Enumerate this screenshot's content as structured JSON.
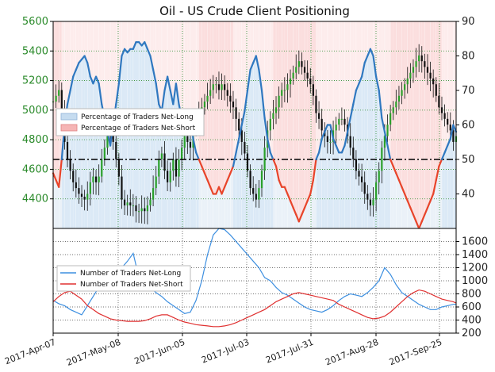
{
  "chart_data": [
    {
      "type": "line",
      "title": "Oil - US Crude Client Positioning",
      "y_left": {
        "ticks": [
          4400,
          4600,
          4800,
          5000,
          5200,
          5400,
          5600
        ],
        "range": [
          4200,
          5600
        ],
        "color": "#2a8a2a"
      },
      "y_right": {
        "ticks": [
          40,
          50,
          60,
          70,
          80,
          90
        ],
        "range": [
          30,
          90
        ]
      },
      "x_ticks": [
        "2017-Apr-07",
        "2017-May-08",
        "2017-Jun-05",
        "2017-Jul-03",
        "2017-Jul-31",
        "2017-Aug-28",
        "2017-Sep-25"
      ],
      "reference_line": {
        "value": 50,
        "axis": "right",
        "style": "dash-dot"
      },
      "legend": {
        "placement": "upper-left",
        "entries": [
          {
            "label": "Percentage of Traders Net-Long",
            "color": "#c6dcf0"
          },
          {
            "label": "Percentage of Traders Net-Short",
            "color": "#f5b5b5"
          }
        ]
      },
      "net_long_pct": [
        [
          0,
          46
        ],
        [
          1,
          44
        ],
        [
          2,
          42
        ],
        [
          3,
          50
        ],
        [
          4,
          60
        ],
        [
          5,
          66
        ],
        [
          6,
          70
        ],
        [
          7,
          74
        ],
        [
          8,
          76
        ],
        [
          9,
          78
        ],
        [
          10,
          79
        ],
        [
          11,
          80
        ],
        [
          12,
          78
        ],
        [
          13,
          74
        ],
        [
          14,
          72
        ],
        [
          15,
          74
        ],
        [
          16,
          72
        ],
        [
          17,
          66
        ],
        [
          18,
          62
        ],
        [
          19,
          58
        ],
        [
          20,
          54
        ],
        [
          21,
          60
        ],
        [
          22,
          66
        ],
        [
          23,
          72
        ],
        [
          24,
          80
        ],
        [
          25,
          82
        ],
        [
          26,
          81
        ],
        [
          27,
          82
        ],
        [
          28,
          82
        ],
        [
          29,
          84
        ],
        [
          30,
          84
        ],
        [
          31,
          83
        ],
        [
          32,
          84
        ],
        [
          33,
          82
        ],
        [
          34,
          80
        ],
        [
          35,
          76
        ],
        [
          36,
          72
        ],
        [
          37,
          66
        ],
        [
          38,
          64
        ],
        [
          39,
          70
        ],
        [
          40,
          74
        ],
        [
          41,
          70
        ],
        [
          42,
          66
        ],
        [
          43,
          72
        ],
        [
          44,
          66
        ],
        [
          45,
          62
        ],
        [
          46,
          58
        ],
        [
          47,
          60
        ],
        [
          48,
          62
        ],
        [
          49,
          56
        ],
        [
          50,
          52
        ],
        [
          51,
          50
        ],
        [
          52,
          48
        ],
        [
          53,
          46
        ],
        [
          54,
          44
        ],
        [
          55,
          42
        ],
        [
          56,
          40
        ],
        [
          57,
          40
        ],
        [
          58,
          42
        ],
        [
          59,
          40
        ],
        [
          60,
          42
        ],
        [
          61,
          44
        ],
        [
          62,
          46
        ],
        [
          63,
          48
        ],
        [
          64,
          52
        ],
        [
          65,
          56
        ],
        [
          66,
          60
        ],
        [
          67,
          64
        ],
        [
          68,
          70
        ],
        [
          69,
          76
        ],
        [
          70,
          78
        ],
        [
          71,
          80
        ],
        [
          72,
          76
        ],
        [
          73,
          70
        ],
        [
          74,
          62
        ],
        [
          75,
          56
        ],
        [
          76,
          52
        ],
        [
          77,
          50
        ],
        [
          78,
          48
        ],
        [
          79,
          44
        ],
        [
          80,
          42
        ],
        [
          81,
          42
        ],
        [
          82,
          40
        ],
        [
          83,
          38
        ],
        [
          84,
          36
        ],
        [
          85,
          34
        ],
        [
          86,
          32
        ],
        [
          87,
          34
        ],
        [
          88,
          36
        ],
        [
          89,
          38
        ],
        [
          90,
          40
        ],
        [
          91,
          44
        ],
        [
          92,
          50
        ],
        [
          93,
          52
        ],
        [
          94,
          56
        ],
        [
          95,
          58
        ],
        [
          96,
          60
        ],
        [
          97,
          60
        ],
        [
          98,
          56
        ],
        [
          99,
          54
        ],
        [
          100,
          52
        ],
        [
          101,
          52
        ],
        [
          102,
          54
        ],
        [
          103,
          58
        ],
        [
          104,
          62
        ],
        [
          105,
          66
        ],
        [
          106,
          70
        ],
        [
          107,
          72
        ],
        [
          108,
          74
        ],
        [
          109,
          78
        ],
        [
          110,
          80
        ],
        [
          111,
          82
        ],
        [
          112,
          80
        ],
        [
          113,
          74
        ],
        [
          114,
          70
        ],
        [
          115,
          62
        ],
        [
          116,
          58
        ],
        [
          117,
          54
        ],
        [
          118,
          50
        ],
        [
          119,
          48
        ],
        [
          120,
          46
        ],
        [
          121,
          44
        ],
        [
          122,
          42
        ],
        [
          123,
          40
        ],
        [
          124,
          38
        ],
        [
          125,
          36
        ],
        [
          126,
          34
        ],
        [
          127,
          32
        ],
        [
          128,
          30
        ],
        [
          129,
          32
        ],
        [
          130,
          34
        ],
        [
          131,
          36
        ],
        [
          132,
          38
        ],
        [
          133,
          40
        ],
        [
          134,
          44
        ],
        [
          135,
          48
        ],
        [
          136,
          50
        ],
        [
          137,
          52
        ],
        [
          138,
          54
        ],
        [
          139,
          56
        ],
        [
          140,
          60
        ],
        [
          141,
          58
        ]
      ]
    },
    {
      "type": "line",
      "y_right": {
        "ticks": [
          200,
          400,
          600,
          800,
          1000,
          1200,
          1400,
          1600
        ],
        "range": [
          200,
          1800
        ]
      },
      "x_ticks": [
        "2017-Apr-07",
        "2017-May-08",
        "2017-Jun-05",
        "2017-Jul-03",
        "2017-Jul-31",
        "2017-Aug-28",
        "2017-Sep-25"
      ],
      "legend": {
        "placement": "center-left",
        "entries": [
          {
            "label": "Number of Traders Net-Long",
            "color": "#3d8fe0"
          },
          {
            "label": "Number of Traders Net-Short",
            "color": "#e03030"
          }
        ]
      },
      "series": [
        {
          "name": "Number of Traders Net-Long",
          "color": "#3d8fe0",
          "points": [
            [
              0,
              700
            ],
            [
              2,
              650
            ],
            [
              4,
              620
            ],
            [
              6,
              560
            ],
            [
              8,
              520
            ],
            [
              10,
              480
            ],
            [
              12,
              620
            ],
            [
              14,
              760
            ],
            [
              16,
              900
            ],
            [
              18,
              980
            ],
            [
              20,
              1040
            ],
            [
              22,
              1100
            ],
            [
              24,
              1200
            ],
            [
              26,
              1300
            ],
            [
              28,
              1420
            ],
            [
              30,
              1050
            ],
            [
              32,
              1000
            ],
            [
              34,
              900
            ],
            [
              36,
              820
            ],
            [
              38,
              760
            ],
            [
              40,
              680
            ],
            [
              42,
              620
            ],
            [
              44,
              560
            ],
            [
              46,
              500
            ],
            [
              48,
              520
            ],
            [
              50,
              700
            ],
            [
              52,
              1000
            ],
            [
              54,
              1400
            ],
            [
              56,
              1700
            ],
            [
              58,
              1800
            ],
            [
              60,
              1780
            ],
            [
              62,
              1700
            ],
            [
              64,
              1600
            ],
            [
              66,
              1500
            ],
            [
              68,
              1400
            ],
            [
              70,
              1300
            ],
            [
              72,
              1200
            ],
            [
              74,
              1050
            ],
            [
              76,
              1000
            ],
            [
              78,
              900
            ],
            [
              80,
              820
            ],
            [
              82,
              780
            ],
            [
              84,
              720
            ],
            [
              86,
              660
            ],
            [
              88,
              600
            ],
            [
              90,
              560
            ],
            [
              92,
              540
            ],
            [
              94,
              520
            ],
            [
              96,
              560
            ],
            [
              98,
              620
            ],
            [
              100,
              700
            ],
            [
              102,
              760
            ],
            [
              104,
              800
            ],
            [
              106,
              780
            ],
            [
              108,
              760
            ],
            [
              110,
              820
            ],
            [
              112,
              900
            ],
            [
              114,
              1000
            ],
            [
              116,
              1200
            ],
            [
              118,
              1100
            ],
            [
              120,
              940
            ],
            [
              122,
              820
            ],
            [
              124,
              760
            ],
            [
              126,
              700
            ],
            [
              128,
              640
            ],
            [
              130,
              600
            ],
            [
              132,
              560
            ],
            [
              134,
              560
            ],
            [
              136,
              600
            ],
            [
              138,
              620
            ],
            [
              140,
              640
            ],
            [
              141,
              640
            ]
          ]
        },
        {
          "name": "Number of Traders Net-Short",
          "color": "#e03030",
          "points": [
            [
              0,
              680
            ],
            [
              2,
              760
            ],
            [
              4,
              820
            ],
            [
              6,
              840
            ],
            [
              8,
              780
            ],
            [
              10,
              720
            ],
            [
              12,
              620
            ],
            [
              14,
              560
            ],
            [
              16,
              500
            ],
            [
              18,
              460
            ],
            [
              20,
              420
            ],
            [
              22,
              400
            ],
            [
              24,
              390
            ],
            [
              26,
              380
            ],
            [
              28,
              380
            ],
            [
              30,
              380
            ],
            [
              32,
              390
            ],
            [
              34,
              420
            ],
            [
              36,
              460
            ],
            [
              38,
              480
            ],
            [
              40,
              480
            ],
            [
              42,
              440
            ],
            [
              44,
              400
            ],
            [
              46,
              370
            ],
            [
              48,
              350
            ],
            [
              50,
              330
            ],
            [
              52,
              320
            ],
            [
              54,
              310
            ],
            [
              56,
              300
            ],
            [
              58,
              300
            ],
            [
              60,
              310
            ],
            [
              62,
              330
            ],
            [
              64,
              360
            ],
            [
              66,
              400
            ],
            [
              68,
              440
            ],
            [
              70,
              480
            ],
            [
              72,
              520
            ],
            [
              74,
              560
            ],
            [
              76,
              620
            ],
            [
              78,
              680
            ],
            [
              80,
              720
            ],
            [
              82,
              760
            ],
            [
              84,
              800
            ],
            [
              86,
              820
            ],
            [
              88,
              800
            ],
            [
              90,
              780
            ],
            [
              92,
              760
            ],
            [
              94,
              740
            ],
            [
              96,
              720
            ],
            [
              98,
              700
            ],
            [
              100,
              640
            ],
            [
              102,
              600
            ],
            [
              104,
              560
            ],
            [
              106,
              520
            ],
            [
              108,
              480
            ],
            [
              110,
              440
            ],
            [
              112,
              420
            ],
            [
              114,
              430
            ],
            [
              116,
              460
            ],
            [
              118,
              520
            ],
            [
              120,
              600
            ],
            [
              122,
              680
            ],
            [
              124,
              760
            ],
            [
              126,
              820
            ],
            [
              128,
              860
            ],
            [
              130,
              840
            ],
            [
              132,
              800
            ],
            [
              134,
              760
            ],
            [
              136,
              720
            ],
            [
              138,
              700
            ],
            [
              140,
              680
            ],
            [
              141,
              660
            ]
          ]
        }
      ]
    }
  ]
}
